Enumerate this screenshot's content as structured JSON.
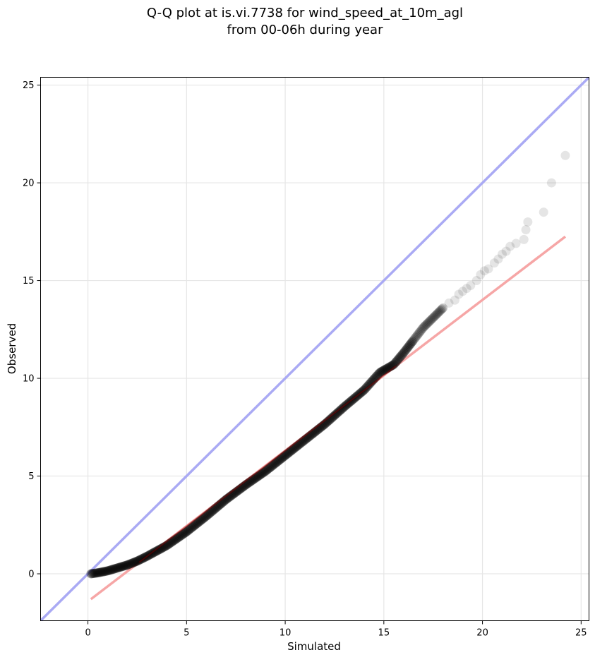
{
  "chart_data": {
    "type": "scatter",
    "title_lines": [
      "Q-Q plot at is.vi.7738 for wind_speed_at_10m_agl",
      "from 00-06h during year"
    ],
    "xlabel": "Simulated",
    "ylabel": "Observed",
    "xlim": [
      -2.4,
      25.4
    ],
    "ylim": [
      -2.4,
      25.4
    ],
    "x_ticks": [
      0,
      5,
      10,
      15,
      20,
      25
    ],
    "y_ticks": [
      0,
      5,
      10,
      15,
      20,
      25
    ],
    "grid": true,
    "reference_lines": [
      {
        "kind": "1:1 line",
        "color": "#aaaaf4",
        "x": [
          -2.4,
          25.4
        ],
        "y": [
          -2.4,
          25.4
        ]
      },
      {
        "kind": "fit line",
        "color": "#f6a6a6",
        "x": [
          0.15,
          24.2
        ],
        "y": [
          -1.3,
          17.25
        ]
      }
    ],
    "quantile_curve": {
      "color": "#000000",
      "knots_x": [
        0.15,
        0.5,
        1.0,
        1.5,
        2.0,
        2.5,
        3.0,
        4.0,
        5.0,
        6.0,
        7.0,
        8.0,
        9.0,
        10.0,
        11.0,
        12.0,
        13.0,
        14.0,
        14.8,
        15.5,
        16.0,
        17.0,
        18.0
      ],
      "knots_y": [
        0.0,
        0.05,
        0.15,
        0.3,
        0.45,
        0.65,
        0.9,
        1.45,
        2.15,
        2.95,
        3.8,
        4.55,
        5.25,
        6.05,
        6.85,
        7.65,
        8.55,
        9.4,
        10.3,
        10.7,
        11.3,
        12.6,
        13.6
      ],
      "n_points": 360
    },
    "tail_points": {
      "color": "#000000",
      "values": [
        {
          "x": 18.3,
          "y": 13.85
        },
        {
          "x": 18.6,
          "y": 14.0
        },
        {
          "x": 18.8,
          "y": 14.3
        },
        {
          "x": 19.0,
          "y": 14.45
        },
        {
          "x": 19.2,
          "y": 14.6
        },
        {
          "x": 19.4,
          "y": 14.75
        },
        {
          "x": 19.7,
          "y": 15.0
        },
        {
          "x": 19.9,
          "y": 15.3
        },
        {
          "x": 20.1,
          "y": 15.5
        },
        {
          "x": 20.3,
          "y": 15.6
        },
        {
          "x": 20.6,
          "y": 15.9
        },
        {
          "x": 20.8,
          "y": 16.1
        },
        {
          "x": 21.0,
          "y": 16.35
        },
        {
          "x": 21.2,
          "y": 16.5
        },
        {
          "x": 21.4,
          "y": 16.75
        },
        {
          "x": 21.7,
          "y": 16.9
        },
        {
          "x": 22.1,
          "y": 17.1
        },
        {
          "x": 22.2,
          "y": 17.6
        },
        {
          "x": 22.3,
          "y": 18.0
        },
        {
          "x": 23.1,
          "y": 18.5
        },
        {
          "x": 23.5,
          "y": 20.0
        },
        {
          "x": 24.2,
          "y": 21.4
        }
      ]
    }
  }
}
